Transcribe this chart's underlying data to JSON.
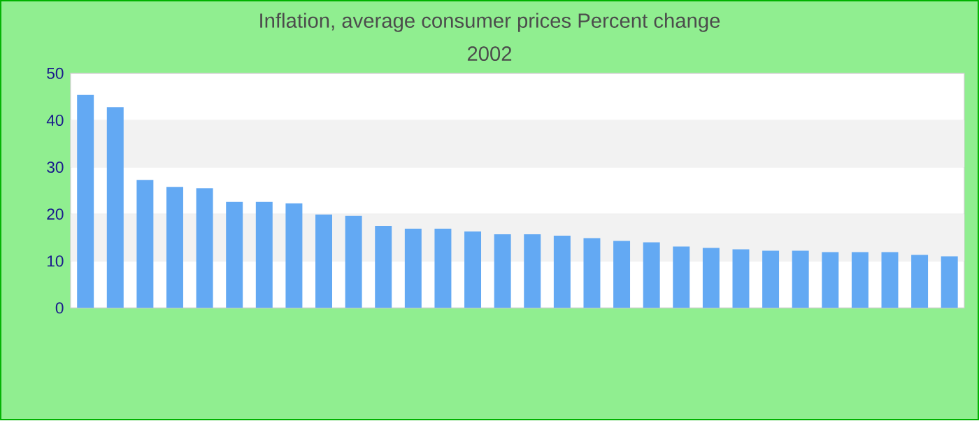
{
  "chart_data": {
    "type": "bar",
    "title": "Inflation, average consumer prices  Percent change",
    "subtitle": "2002",
    "categories": [
      null,
      null,
      null,
      null,
      null,
      null,
      null,
      null,
      null,
      null,
      null,
      null,
      null,
      null,
      null,
      null,
      null,
      null,
      null,
      null,
      null,
      null,
      null,
      null,
      null,
      null,
      null,
      null,
      null,
      null
    ],
    "values": [
      45.4,
      42.8,
      27.3,
      25.8,
      25.5,
      22.6,
      22.6,
      22.3,
      19.9,
      19.6,
      17.5,
      16.9,
      16.9,
      16.3,
      15.7,
      15.7,
      15.4,
      14.9,
      14.3,
      14.0,
      13.1,
      12.8,
      12.5,
      12.2,
      12.2,
      11.9,
      11.9,
      11.9,
      11.3,
      11.0
    ],
    "color": "#63a9f3",
    "ylim": [
      0,
      50
    ],
    "yticks": [
      0,
      10,
      20,
      30,
      40,
      50
    ],
    "grid": "y"
  }
}
